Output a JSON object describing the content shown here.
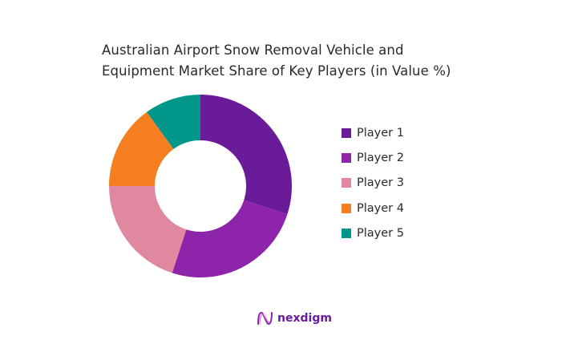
{
  "title": {
    "line1": "Australian Airport Snow Removal Vehicle and",
    "line2": "Equipment Market Share of Key Players (in Value %)"
  },
  "chart_data": {
    "type": "pie",
    "subtype": "donut",
    "title": "Australian Airport Snow Removal Vehicle and Equipment Market Share of Key Players (in Value %)",
    "categories": [
      "Player 1",
      "Player 2",
      "Player 3",
      "Player 4",
      "Player 5"
    ],
    "values": [
      30,
      25,
      20,
      15,
      10
    ],
    "colors": [
      "#6a1b9a",
      "#8e24aa",
      "#e088a0",
      "#f57f20",
      "#00968a"
    ],
    "legend_position": "right",
    "start_angle": "12 o'clock",
    "direction": "clockwise"
  },
  "legend": {
    "items": [
      {
        "label": "Player 1",
        "color": "#6a1b9a"
      },
      {
        "label": "Player 2",
        "color": "#8e24aa"
      },
      {
        "label": "Player 3",
        "color": "#e088a0"
      },
      {
        "label": "Player 4",
        "color": "#f57f20"
      },
      {
        "label": "Player 5",
        "color": "#00968a"
      }
    ]
  },
  "branding": {
    "logo_text": "nexdigm",
    "accent": "#6a1b9a"
  }
}
